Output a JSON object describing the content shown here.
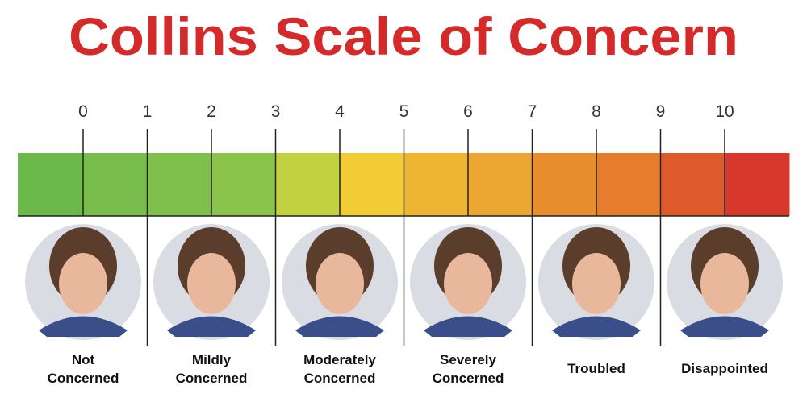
{
  "title": "Collins Scale of Concern",
  "scale": {
    "ticks": [
      0,
      1,
      2,
      3,
      4,
      5,
      6,
      7,
      8,
      9,
      10
    ],
    "segment_colors": [
      "#6cb84b",
      "#78bd4c",
      "#7fc04c",
      "#8ac44b",
      "#c2d140",
      "#f2cc35",
      "#eeb532",
      "#eba731",
      "#e98e2e",
      "#e67d2c",
      "#df5a2b",
      "#d8382b"
    ]
  },
  "levels": [
    {
      "lines": [
        "Not",
        "Concerned"
      ]
    },
    {
      "lines": [
        "Mildly",
        "Concerned"
      ]
    },
    {
      "lines": [
        "Moderately",
        "Concerned"
      ]
    },
    {
      "lines": [
        "Severely",
        "Concerned"
      ]
    },
    {
      "lines": [
        "Troubled"
      ]
    },
    {
      "lines": [
        "Disappointed"
      ]
    }
  ]
}
